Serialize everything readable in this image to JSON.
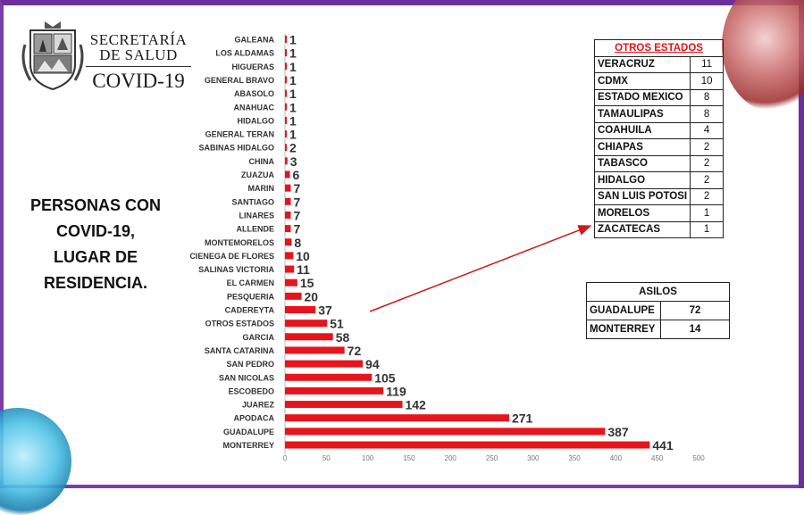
{
  "header": {
    "org_line1": "SECRETARÍA",
    "org_line2": "DE SALUD",
    "program": "COVID-19"
  },
  "headline": {
    "line1": "PERSONAS CON",
    "line2": "COVID-19,",
    "line3": "LUGAR DE",
    "line4": "RESIDENCIA."
  },
  "colors": {
    "bar": "#e8141b",
    "frame": "#6a2f9a",
    "arrow": "#d01a1a",
    "otros_title": "#e0151b"
  },
  "chart_data": {
    "type": "bar",
    "orientation": "horizontal",
    "title": "PERSONAS CON COVID-19, LUGAR DE RESIDENCIA.",
    "categories": [
      "GALEANA",
      "LOS ALDAMAS",
      "HIGUERAS",
      "GENERAL BRAVO",
      "ABASOLO",
      "ANAHUAC",
      "HIDALGO",
      "GENERAL TERAN",
      "SABINAS HIDALGO",
      "CHINA",
      "ZUAZUA",
      "MARIN",
      "SANTIAGO",
      "LINARES",
      "ALLENDE",
      "MONTEMORELOS",
      "CIENEGA DE FLORES",
      "SALINAS VICTORIA",
      "EL CARMEN",
      "PESQUERIA",
      "CADEREYTA",
      "OTROS ESTADOS",
      "GARCIA",
      "SANTA CATARINA",
      "SAN PEDRO",
      "SAN NICOLAS",
      "ESCOBEDO",
      "JUAREZ",
      "APODACA",
      "GUADALUPE",
      "MONTERREY"
    ],
    "values": [
      1,
      1,
      1,
      1,
      1,
      1,
      1,
      1,
      2,
      3,
      6,
      7,
      7,
      7,
      7,
      8,
      10,
      11,
      15,
      20,
      37,
      51,
      58,
      72,
      94,
      105,
      119,
      142,
      271,
      387,
      441
    ],
    "xlim": [
      0,
      500
    ],
    "xticks": [
      0,
      50,
      100,
      150,
      200,
      250,
      300,
      350,
      400,
      450,
      500
    ],
    "grid": false,
    "legend": "none"
  },
  "otros_estados": {
    "title": "OTROS ESTADOS",
    "rows": [
      {
        "name": "VERACRUZ",
        "value": "11"
      },
      {
        "name": "CDMX",
        "value": "10"
      },
      {
        "name": "ESTADO MEXICO",
        "value": "8"
      },
      {
        "name": "TAMAULIPAS",
        "value": "8"
      },
      {
        "name": "COAHUILA",
        "value": "4"
      },
      {
        "name": "CHIAPAS",
        "value": "2"
      },
      {
        "name": "TABASCO",
        "value": "2"
      },
      {
        "name": "HIDALGO",
        "value": "2"
      },
      {
        "name": "SAN LUIS POTOSI",
        "value": "2"
      },
      {
        "name": "MORELOS",
        "value": "1"
      },
      {
        "name": "ZACATECAS",
        "value": "1"
      }
    ]
  },
  "asilos": {
    "title": "ASILOS",
    "rows": [
      {
        "name": "GUADALUPE",
        "value": "72"
      },
      {
        "name": "MONTERREY",
        "value": "14"
      }
    ]
  }
}
